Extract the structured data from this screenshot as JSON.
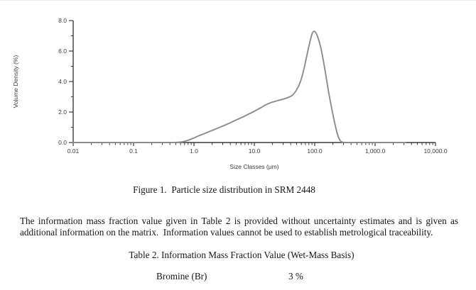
{
  "page": {
    "figure_caption": "Figure 1.  Particle size distribution in SRM 2448",
    "paragraph_lines": [
      "The information mass fraction value given in Table 2 is provided without uncertainty estimates and is given as",
      "additional information on the matrix.  Information values cannot be used to establish metrological traceability."
    ],
    "table2": {
      "caption": "Table 2. Information Mass Fraction Value (Wet-Mass Basis)",
      "rows": [
        {
          "analyte": "Bromine (Br)",
          "value": "3 %"
        }
      ]
    }
  },
  "chart_data": {
    "type": "line",
    "title": "",
    "xlabel": "Size Classes (µm)",
    "ylabel": "Volume Density (%)",
    "x_scale": "log",
    "xlim": [
      0.01,
      10000
    ],
    "ylim": [
      0,
      8
    ],
    "x_tick_values": [
      0.01,
      0.1,
      1,
      10,
      100,
      1000,
      10000
    ],
    "x_tick_labels": [
      "0.01",
      "0.1",
      "1.0",
      "10.0",
      "100.0",
      "1,000.0",
      "10,000.0"
    ],
    "y_tick_values": [
      0,
      2,
      4,
      6,
      8
    ],
    "y_tick_labels": [
      "0.0",
      "2.0",
      "4.0",
      "6.0",
      "8.0"
    ],
    "y_minor_ticks": [
      1,
      3,
      5,
      7
    ],
    "grid": false,
    "legend": "none",
    "line_color": "#8c8c8c",
    "axis_color": "#3a3a3a",
    "label_color": "#3c3c3c",
    "series": [
      {
        "name": "SRM 2448 particle size distribution",
        "points": [
          [
            0.01,
            0
          ],
          [
            0.05,
            0
          ],
          [
            0.1,
            0
          ],
          [
            0.2,
            0
          ],
          [
            0.35,
            0
          ],
          [
            0.5,
            0.01
          ],
          [
            0.65,
            0.05
          ],
          [
            0.8,
            0.15
          ],
          [
            1.0,
            0.3
          ],
          [
            1.3,
            0.5
          ],
          [
            1.7,
            0.68
          ],
          [
            2.2,
            0.86
          ],
          [
            3,
            1.08
          ],
          [
            4,
            1.3
          ],
          [
            5,
            1.48
          ],
          [
            6.5,
            1.68
          ],
          [
            8,
            1.86
          ],
          [
            10,
            2.05
          ],
          [
            13,
            2.3
          ],
          [
            16,
            2.5
          ],
          [
            20,
            2.65
          ],
          [
            26,
            2.78
          ],
          [
            33,
            2.9
          ],
          [
            42,
            3.08
          ],
          [
            50,
            3.45
          ],
          [
            58,
            4.0
          ],
          [
            66,
            4.8
          ],
          [
            74,
            5.7
          ],
          [
            82,
            6.5
          ],
          [
            90,
            7.1
          ],
          [
            97,
            7.3
          ],
          [
            106,
            7.15
          ],
          [
            118,
            6.65
          ],
          [
            132,
            5.85
          ],
          [
            150,
            4.6
          ],
          [
            170,
            3.3
          ],
          [
            192,
            2.2
          ],
          [
            215,
            1.25
          ],
          [
            240,
            0.5
          ],
          [
            262,
            0.15
          ],
          [
            285,
            0.03
          ],
          [
            330,
            0
          ],
          [
            500,
            0
          ],
          [
            1000,
            0
          ],
          [
            3200,
            0
          ]
        ]
      }
    ]
  }
}
